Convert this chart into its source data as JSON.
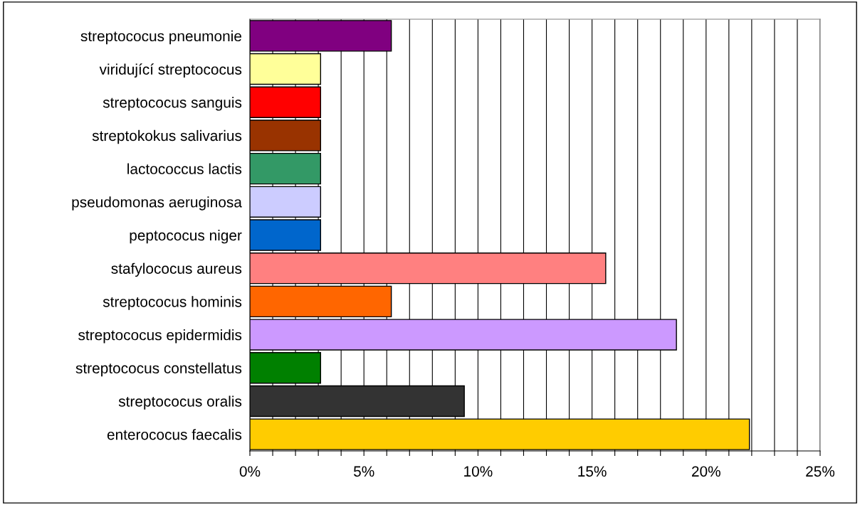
{
  "chart_data": {
    "type": "bar",
    "orientation": "horizontal",
    "categories": [
      "streptococus pneumonie",
      "viridující streptococus",
      "streptococus sanguis",
      "streptokokus salivarius",
      "lactococcus lactis",
      "pseudomonas aeruginosa",
      "peptococus niger",
      "stafylococus aureus",
      "streptococus hominis",
      "streptococus epidermidis",
      "streptococus constellatus",
      "streptococus oralis",
      "enterococus faecalis"
    ],
    "values": [
      6.2,
      3.1,
      3.1,
      3.1,
      3.1,
      3.1,
      3.1,
      15.6,
      6.2,
      18.7,
      3.1,
      9.4,
      21.9
    ],
    "colors": [
      "#800080",
      "#ffff99",
      "#ff0000",
      "#993300",
      "#339966",
      "#ccccff",
      "#0066cc",
      "#ff8080",
      "#ff6600",
      "#cc99ff",
      "#008000",
      "#333333",
      "#ffcc00"
    ],
    "xlim": [
      0,
      25
    ],
    "xticks": [
      {
        "value": 0,
        "label": "0%"
      },
      {
        "value": 1,
        "label": null
      },
      {
        "value": 2,
        "label": null
      },
      {
        "value": 3,
        "label": null
      },
      {
        "value": 4,
        "label": null
      },
      {
        "value": 5,
        "label": "5%"
      },
      {
        "value": 6,
        "label": null
      },
      {
        "value": 7,
        "label": null
      },
      {
        "value": 8,
        "label": null
      },
      {
        "value": 9,
        "label": null
      },
      {
        "value": 10,
        "label": "10%"
      },
      {
        "value": 11,
        "label": null
      },
      {
        "value": 12,
        "label": null
      },
      {
        "value": 13,
        "label": null
      },
      {
        "value": 14,
        "label": null
      },
      {
        "value": 15,
        "label": "15%"
      },
      {
        "value": 16,
        "label": null
      },
      {
        "value": 17,
        "label": null
      },
      {
        "value": 18,
        "label": null
      },
      {
        "value": 19,
        "label": null
      },
      {
        "value": 20,
        "label": "20%"
      },
      {
        "value": 21,
        "label": null
      },
      {
        "value": 22,
        "label": null
      },
      {
        "value": 23,
        "label": null
      },
      {
        "value": 24,
        "label": null
      },
      {
        "value": 25,
        "label": "25%"
      }
    ],
    "grid": "x"
  }
}
